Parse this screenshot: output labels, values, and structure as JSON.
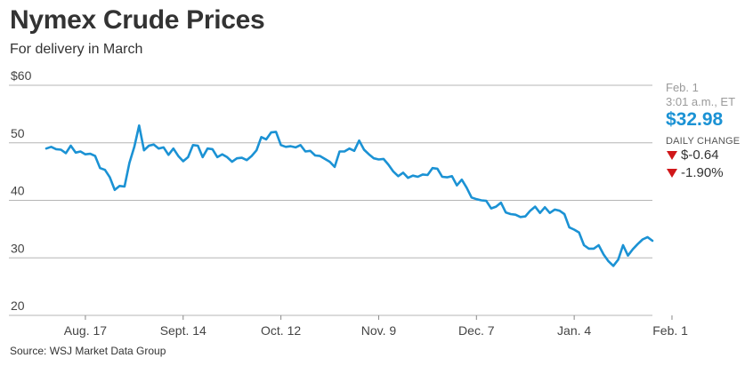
{
  "header": {
    "title": "Nymex Crude Prices",
    "subtitle": "For delivery in March"
  },
  "source": "Source: WSJ Market Data Group",
  "readout": {
    "date": "Feb. 1",
    "time": "3:01 a.m., ET",
    "price": "$32.98",
    "daily_change_label": "DAILY CHANGE",
    "change_abs": "$-0.64",
    "change_pct": "-1.90%"
  },
  "colors": {
    "line": "#1b92d4",
    "down": "#d0171a",
    "grid": "#b5b5b5"
  },
  "chart_data": {
    "type": "line",
    "title": "Nymex Crude Prices",
    "subtitle": "For delivery in March",
    "ylim": [
      20,
      60
    ],
    "yticks": [
      60,
      50,
      40,
      30,
      20
    ],
    "ytick_labels": [
      "$60",
      "50",
      "40",
      "30",
      "20"
    ],
    "xtick_labels": [
      "Aug. 17",
      "Sept. 14",
      "Oct. 12",
      "Nov. 9",
      "Dec. 7",
      "Jan. 4",
      "Feb. 1"
    ],
    "xtick_index": [
      8,
      28,
      48,
      68,
      88,
      108,
      128
    ],
    "grid": true,
    "series": [
      {
        "values": [
          49.0,
          49.3,
          48.9,
          48.8,
          48.2,
          49.5,
          48.3,
          48.5,
          48.0,
          48.1,
          47.7,
          45.6,
          45.3,
          44.0,
          41.8,
          42.5,
          42.4,
          46.5,
          49.3,
          53.0,
          48.7,
          49.5,
          49.7,
          49.0,
          49.2,
          47.9,
          49.0,
          47.7,
          46.8,
          47.5,
          49.6,
          49.5,
          47.5,
          49.0,
          48.9,
          47.5,
          48.0,
          47.5,
          46.7,
          47.3,
          47.4,
          47.0,
          47.7,
          48.7,
          51.0,
          50.6,
          51.8,
          51.9,
          49.6,
          49.3,
          49.4,
          49.2,
          49.6,
          48.5,
          48.6,
          47.8,
          47.7,
          47.2,
          46.7,
          45.8,
          48.5,
          48.5,
          49.0,
          48.6,
          50.4,
          48.8,
          48.0,
          47.3,
          47.1,
          47.2,
          46.2,
          45.0,
          44.2,
          44.8,
          43.9,
          44.3,
          44.1,
          44.5,
          44.4,
          45.6,
          45.5,
          44.1,
          44.0,
          44.2,
          42.6,
          43.6,
          42.2,
          40.5,
          40.2,
          40.0,
          39.9,
          38.6,
          38.9,
          39.6,
          37.9,
          37.6,
          37.5,
          37.1,
          37.2,
          38.2,
          38.9,
          37.8,
          38.8,
          37.8,
          38.4,
          38.2,
          37.6,
          35.3,
          34.9,
          34.4,
          32.2,
          31.6,
          31.6,
          32.2,
          30.6,
          29.4,
          28.6,
          29.7,
          32.2,
          30.4,
          31.5,
          32.4,
          33.2,
          33.6,
          32.98
        ]
      }
    ]
  }
}
